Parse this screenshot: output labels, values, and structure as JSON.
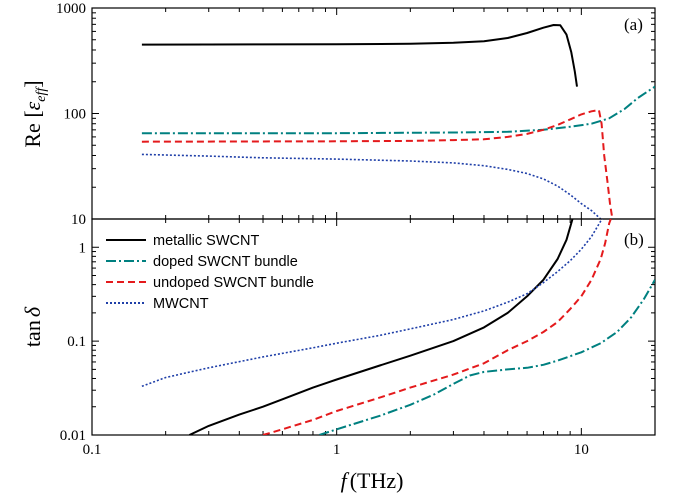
{
  "chart_data": [
    {
      "id": "a",
      "type": "line",
      "panel_label": "(a)",
      "ylabel_main": "Re [",
      "ylabel_symbol": "ε",
      "ylabel_sub": "eff",
      "ylabel_close": "]",
      "xscale": "log",
      "yscale": "log",
      "xlim": [
        0.1,
        20
      ],
      "ylim": [
        10,
        1000
      ],
      "yticks": [
        {
          "v": 10,
          "label": "10"
        },
        {
          "v": 100,
          "label": "100"
        },
        {
          "v": 1000,
          "label": "1000"
        }
      ],
      "series": [
        {
          "key": "metallic",
          "color": "#000000",
          "dash": "",
          "points": [
            [
              0.16,
              450
            ],
            [
              0.3,
              451
            ],
            [
              0.5,
              452
            ],
            [
              1.0,
              453
            ],
            [
              2.0,
              458
            ],
            [
              3.0,
              468
            ],
            [
              4.0,
              485
            ],
            [
              5.0,
              520
            ],
            [
              6.0,
              580
            ],
            [
              7.0,
              650
            ],
            [
              7.7,
              690
            ],
            [
              8.2,
              685
            ],
            [
              8.7,
              560
            ],
            [
              9.1,
              380
            ],
            [
              9.4,
              250
            ],
            [
              9.6,
              180
            ]
          ]
        },
        {
          "key": "doped",
          "color": "#008080",
          "dash": "10,3,2,3",
          "points": [
            [
              0.16,
              65
            ],
            [
              1.0,
              65
            ],
            [
              3.0,
              66
            ],
            [
              5.0,
              67
            ],
            [
              7.0,
              70
            ],
            [
              9.0,
              75
            ],
            [
              11.0,
              80
            ],
            [
              13.0,
              90
            ],
            [
              15.0,
              110
            ],
            [
              17.0,
              140
            ],
            [
              20.0,
              180
            ]
          ]
        },
        {
          "key": "undoped",
          "color": "#e41a1c",
          "dash": "7,4",
          "points": [
            [
              0.16,
              54
            ],
            [
              1.0,
              54.5
            ],
            [
              2.0,
              55
            ],
            [
              3.0,
              56
            ],
            [
              4.0,
              57
            ],
            [
              5.0,
              60
            ],
            [
              6.0,
              64
            ],
            [
              7.0,
              70
            ],
            [
              8.0,
              78
            ],
            [
              9.0,
              88
            ],
            [
              10.0,
              98
            ],
            [
              11.0,
              105
            ],
            [
              11.8,
              108
            ],
            [
              12.1,
              80
            ],
            [
              12.4,
              40
            ],
            [
              12.8,
              22
            ],
            [
              13.1,
              14
            ],
            [
              13.4,
              10
            ]
          ]
        },
        {
          "key": "mwcnt",
          "color": "#1f3fa8",
          "dash": "2,2",
          "points": [
            [
              0.16,
              41
            ],
            [
              0.3,
              39.5
            ],
            [
              0.5,
              38
            ],
            [
              1.0,
              37
            ],
            [
              2.0,
              35.5
            ],
            [
              3.0,
              34
            ],
            [
              4.0,
              32
            ],
            [
              5.0,
              29.5
            ],
            [
              6.0,
              27
            ],
            [
              7.0,
              24
            ],
            [
              8.0,
              20.5
            ],
            [
              9.0,
              17
            ],
            [
              10.0,
              14
            ],
            [
              11.0,
              12
            ],
            [
              12.0,
              10
            ]
          ]
        }
      ]
    },
    {
      "id": "b",
      "type": "line",
      "panel_label": "(b)",
      "ylabel_main": "tan",
      "ylabel_symbol": "δ",
      "xlabel_symbol": "f",
      "xlabel_unit": "(THz)",
      "xscale": "log",
      "yscale": "log",
      "xlim": [
        0.1,
        20
      ],
      "ylim": [
        0.01,
        2
      ],
      "xticks": [
        {
          "v": 0.1,
          "label": "0.1"
        },
        {
          "v": 1,
          "label": "1"
        },
        {
          "v": 10,
          "label": "10"
        }
      ],
      "yticks": [
        {
          "v": 0.01,
          "label": "0.01"
        },
        {
          "v": 0.1,
          "label": "0.1"
        },
        {
          "v": 1,
          "label": "1"
        }
      ],
      "legend": [
        {
          "key": "metallic",
          "label": "metallic SWCNT",
          "color": "#000000",
          "dash": ""
        },
        {
          "key": "doped",
          "label": "doped SWCNT bundle",
          "color": "#008080",
          "dash": "10,3,2,3"
        },
        {
          "key": "undoped",
          "label": "undoped SWCNT bundle",
          "color": "#e41a1c",
          "dash": "7,4"
        },
        {
          "key": "mwcnt",
          "label": "MWCNT",
          "color": "#1f3fa8",
          "dash": "2,2"
        }
      ],
      "series": [
        {
          "key": "metallic",
          "color": "#000000",
          "dash": "",
          "points": [
            [
              0.25,
              0.01
            ],
            [
              0.3,
              0.0125
            ],
            [
              0.4,
              0.0165
            ],
            [
              0.5,
              0.02
            ],
            [
              0.6,
              0.024
            ],
            [
              0.8,
              0.032
            ],
            [
              1.0,
              0.039
            ],
            [
              1.5,
              0.055
            ],
            [
              2.0,
              0.07
            ],
            [
              3.0,
              0.1
            ],
            [
              4.0,
              0.14
            ],
            [
              5.0,
              0.2
            ],
            [
              6.0,
              0.3
            ],
            [
              7.0,
              0.45
            ],
            [
              8.0,
              0.75
            ],
            [
              8.7,
              1.2
            ],
            [
              9.2,
              2.0
            ]
          ]
        },
        {
          "key": "doped",
          "color": "#008080",
          "dash": "10,3,2,3",
          "points": [
            [
              0.85,
              0.01
            ],
            [
              1.0,
              0.0115
            ],
            [
              1.5,
              0.016
            ],
            [
              2.0,
              0.021
            ],
            [
              2.5,
              0.027
            ],
            [
              3.0,
              0.035
            ],
            [
              3.5,
              0.043
            ],
            [
              4.0,
              0.047
            ],
            [
              5.0,
              0.05
            ],
            [
              6.0,
              0.052
            ],
            [
              7.0,
              0.056
            ],
            [
              8.0,
              0.062
            ],
            [
              10.0,
              0.076
            ],
            [
              12.0,
              0.095
            ],
            [
              14.0,
              0.125
            ],
            [
              16.0,
              0.18
            ],
            [
              18.0,
              0.28
            ],
            [
              20.0,
              0.45
            ]
          ]
        },
        {
          "key": "undoped",
          "color": "#e41a1c",
          "dash": "7,4",
          "points": [
            [
              0.5,
              0.01
            ],
            [
              0.6,
              0.0115
            ],
            [
              0.8,
              0.0145
            ],
            [
              1.0,
              0.018
            ],
            [
              1.5,
              0.025
            ],
            [
              2.0,
              0.032
            ],
            [
              3.0,
              0.044
            ],
            [
              4.0,
              0.058
            ],
            [
              5.0,
              0.08
            ],
            [
              6.0,
              0.1
            ],
            [
              7.0,
              0.125
            ],
            [
              8.0,
              0.16
            ],
            [
              9.0,
              0.22
            ],
            [
              10.0,
              0.3
            ],
            [
              11.0,
              0.45
            ],
            [
              12.0,
              0.75
            ],
            [
              12.5,
              1.1
            ],
            [
              13.0,
              1.8
            ],
            [
              13.2,
              2.0
            ]
          ]
        },
        {
          "key": "mwcnt",
          "color": "#1f3fa8",
          "dash": "2,2",
          "points": [
            [
              0.16,
              0.033
            ],
            [
              0.2,
              0.041
            ],
            [
              0.3,
              0.052
            ],
            [
              0.5,
              0.068
            ],
            [
              0.8,
              0.085
            ],
            [
              1.0,
              0.095
            ],
            [
              1.5,
              0.115
            ],
            [
              2.0,
              0.135
            ],
            [
              3.0,
              0.17
            ],
            [
              4.0,
              0.21
            ],
            [
              5.0,
              0.26
            ],
            [
              6.0,
              0.32
            ],
            [
              7.0,
              0.42
            ],
            [
              8.0,
              0.55
            ],
            [
              9.0,
              0.72
            ],
            [
              10.0,
              0.95
            ],
            [
              11.0,
              1.3
            ],
            [
              12.0,
              1.9
            ],
            [
              12.2,
              2.0
            ]
          ]
        }
      ]
    }
  ]
}
